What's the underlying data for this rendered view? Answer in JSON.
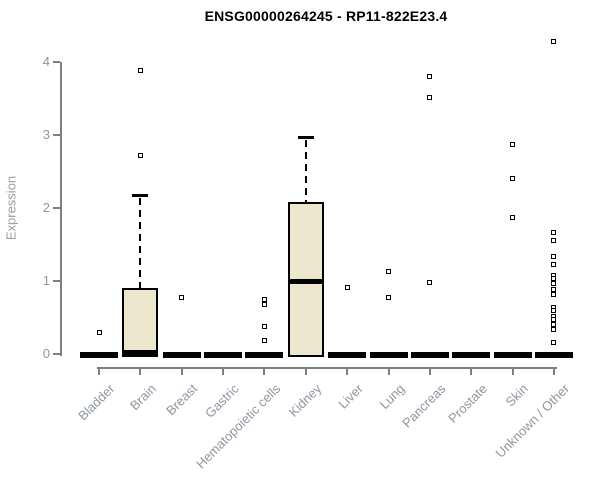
{
  "chart_data": {
    "type": "boxplot",
    "title": "ENSG00000264245 - RP11-822E23.4",
    "ylabel": "Expression",
    "xlabel": "",
    "ylim": [
      0,
      4.3
    ],
    "yticks": [
      0,
      1,
      2,
      3,
      4
    ],
    "grid": false,
    "legend": false,
    "categories": [
      "Bladder",
      "Brain",
      "Breast",
      "Gastric",
      "Hematopoietic cells",
      "Kidney",
      "Liver",
      "Lung",
      "Pancreas",
      "Prostate",
      "Skin",
      "Unknown / Other"
    ],
    "boxes": [
      {
        "category": "Bladder",
        "q1": 0,
        "median": 0,
        "q3": 0,
        "whisker_low": 0,
        "whisker_high": 0,
        "outliers": [
          0.29
        ]
      },
      {
        "category": "Brain",
        "q1": 0,
        "median": 0.03,
        "q3": 0.9,
        "whisker_low": 0,
        "whisker_high": 2.18,
        "outliers": [
          2.72,
          3.88
        ]
      },
      {
        "category": "Breast",
        "q1": 0,
        "median": 0,
        "q3": 0,
        "whisker_low": 0,
        "whisker_high": 0,
        "outliers": [
          0.77
        ]
      },
      {
        "category": "Gastric",
        "q1": 0,
        "median": 0,
        "q3": 0,
        "whisker_low": 0,
        "whisker_high": 0,
        "outliers": []
      },
      {
        "category": "Hematopoietic cells",
        "q1": 0,
        "median": 0,
        "q3": 0,
        "whisker_low": 0,
        "whisker_high": 0,
        "outliers": [
          0.75,
          0.68,
          0.37,
          0.18
        ]
      },
      {
        "category": "Kidney",
        "q1": 0,
        "median": 1.0,
        "q3": 2.08,
        "whisker_low": 0,
        "whisker_high": 2.97,
        "outliers": []
      },
      {
        "category": "Liver",
        "q1": 0,
        "median": 0,
        "q3": 0,
        "whisker_low": 0,
        "whisker_high": 0,
        "outliers": [
          0.91
        ]
      },
      {
        "category": "Lung",
        "q1": 0,
        "median": 0,
        "q3": 0,
        "whisker_low": 0,
        "whisker_high": 0,
        "outliers": [
          1.13,
          0.77
        ]
      },
      {
        "category": "Pancreas",
        "q1": 0,
        "median": 0,
        "q3": 0,
        "whisker_low": 0,
        "whisker_high": 0,
        "outliers": [
          3.8,
          3.52,
          0.98
        ]
      },
      {
        "category": "Prostate",
        "q1": 0,
        "median": 0,
        "q3": 0,
        "whisker_low": 0,
        "whisker_high": 0,
        "outliers": []
      },
      {
        "category": "Skin",
        "q1": 0,
        "median": 0,
        "q3": 0,
        "whisker_low": 0,
        "whisker_high": 0,
        "outliers": [
          2.87,
          2.4,
          1.87
        ]
      },
      {
        "category": "Unknown / Other",
        "q1": 0,
        "median": 0,
        "q3": 0,
        "whisker_low": 0,
        "whisker_high": 0,
        "outliers": [
          4.28,
          1.67,
          1.56,
          1.33,
          1.23,
          1.08,
          1.03,
          0.96,
          0.89,
          0.82,
          0.64,
          0.59,
          0.52,
          0.47,
          0.41,
          0.34,
          0.16
        ]
      }
    ],
    "colors": {
      "box_fill": "#ece7cd",
      "box_border": "#000000",
      "median": "#000000",
      "whisker": "#000000",
      "outlier_fill": "#ffffff",
      "outlier_border": "#000000",
      "axis": "#7f7f7f",
      "tick_label": "#8d96a2",
      "y_axis_title": "#9c9c9c",
      "title": "#000000",
      "background": "#ffffff"
    }
  }
}
